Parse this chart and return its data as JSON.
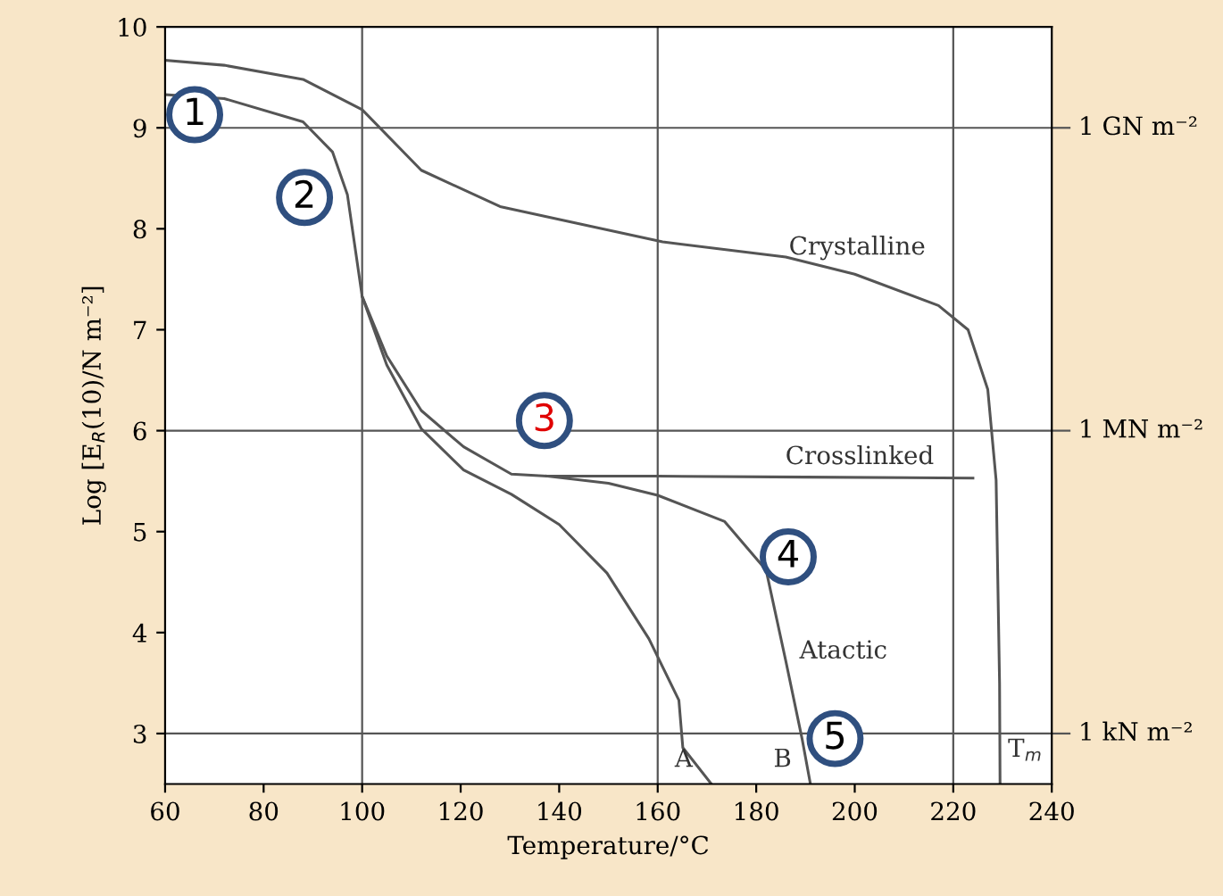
{
  "chart_data": {
    "type": "line",
    "xlabel": "Temperature/°C",
    "ylabel": "Log [E$_{R}$(10)/N m⁻²]",
    "xlim": [
      60,
      240
    ],
    "xticks": [
      60,
      80,
      100,
      120,
      140,
      160,
      180,
      200,
      220,
      240
    ],
    "ylim": [
      2.5,
      10
    ],
    "yticks": [
      3,
      4,
      5,
      6,
      7,
      8,
      9,
      10
    ],
    "grid": false,
    "legend": false,
    "marker": "none",
    "line_style": "solid",
    "series": [
      {
        "name": "Crystalline",
        "color": "#555555",
        "x": [
          60,
          72,
          88,
          100,
          112,
          128,
          161,
          186,
          200,
          217,
          223,
          227,
          228.7,
          229.4,
          229.5
        ],
        "values": [
          9.67,
          9.62,
          9.48,
          9.18,
          8.58,
          8.22,
          7.87,
          7.72,
          7.55,
          7.24,
          7.0,
          6.41,
          5.51,
          3.5,
          2.5
        ]
      },
      {
        "name": "Crosslinked",
        "color": "#555555",
        "x": [
          60,
          72,
          88,
          94,
          97,
          100,
          105,
          112,
          120.6,
          130.3,
          137.5,
          160,
          190,
          224
        ],
        "values": [
          9.33,
          9.29,
          9.06,
          8.76,
          8.34,
          7.33,
          6.74,
          6.2,
          5.84,
          5.57,
          5.55,
          5.55,
          5.54,
          5.53
        ]
      },
      {
        "name": "B",
        "color": "#555555",
        "x": [
          137.5,
          150,
          160,
          173.6,
          182,
          186,
          189.3,
          191
        ],
        "values": [
          5.55,
          5.48,
          5.36,
          5.1,
          4.62,
          3.72,
          2.95,
          2.5
        ]
      },
      {
        "name": "A",
        "color": "#555555",
        "x": [
          100,
          105,
          112,
          120.6,
          130.3,
          140,
          149.7,
          158.2,
          164.3,
          165.1,
          170.9
        ],
        "values": [
          7.33,
          6.65,
          6.02,
          5.61,
          5.37,
          5.07,
          4.59,
          3.94,
          3.33,
          2.86,
          2.5
        ]
      }
    ],
    "ref_lines": [
      {
        "axis": "x",
        "value": 100,
        "color": "#555555"
      },
      {
        "axis": "x",
        "value": 160,
        "color": "#555555"
      },
      {
        "axis": "x",
        "value": 220,
        "color": "#555555"
      },
      {
        "axis": "y",
        "value": 3,
        "label": "1 kN m⁻²",
        "color": "#555555"
      },
      {
        "axis": "y",
        "value": 6,
        "label": "1 MN m⁻²",
        "color": "#555555"
      },
      {
        "axis": "y",
        "value": 9,
        "label": "1 GN m⁻²",
        "color": "#555555"
      }
    ],
    "annotations": [
      {
        "text": "1",
        "x": 66,
        "y": 9.13
      },
      {
        "text": "2",
        "x": 88.3,
        "y": 8.31
      },
      {
        "text": "3",
        "x": 137,
        "y": 6.1
      },
      {
        "text": "4",
        "x": 186.5,
        "y": 4.75
      },
      {
        "text": "5",
        "x": 196,
        "y": 2.95
      },
      "Atactic",
      "T$_{m}$"
    ]
  }
}
